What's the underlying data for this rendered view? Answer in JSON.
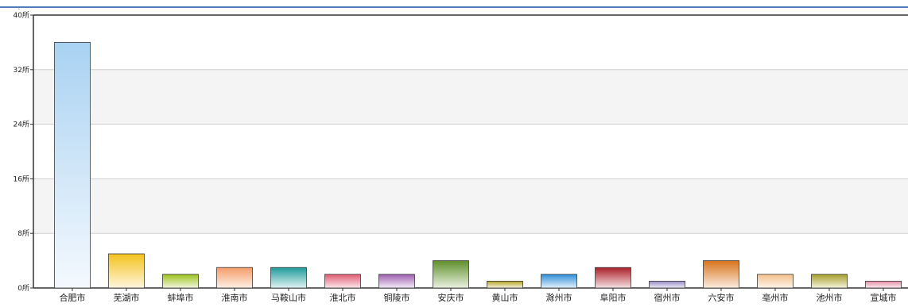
{
  "chart_data": {
    "type": "bar",
    "title": "",
    "xlabel": "",
    "ylabel": "",
    "y_unit": "所",
    "ylim": [
      0,
      40
    ],
    "y_ticks": [
      0,
      8,
      16,
      24,
      32,
      40
    ],
    "y_tick_labels": [
      "0所",
      "8所",
      "16所",
      "24所",
      "32所",
      "40所"
    ],
    "grid": true,
    "legend": "none",
    "categories": [
      "合肥市",
      "芜湖市",
      "蚌埠市",
      "淮南市",
      "马鞍山市",
      "淮北市",
      "铜陵市",
      "安庆市",
      "黄山市",
      "滁州市",
      "阜阳市",
      "宿州市",
      "六安市",
      "亳州市",
      "池州市",
      "宣城市"
    ],
    "values": [
      36,
      5,
      2,
      3,
      3,
      2,
      2,
      4,
      1,
      2,
      3,
      1,
      4,
      2,
      2,
      1
    ],
    "bar_colors": [
      [
        "#a9d2f2",
        "#f4f9fe"
      ],
      [
        "#f3c21b",
        "#fff6de"
      ],
      [
        "#9bc31c",
        "#f1f7df"
      ],
      [
        "#f49c68",
        "#fff0e6"
      ],
      [
        "#1f9a9a",
        "#e0f3f3"
      ],
      [
        "#e05c72",
        "#fbe6ea"
      ],
      [
        "#9d5fb0",
        "#f3eaf7"
      ],
      [
        "#5f8f2b",
        "#eaf2e1"
      ],
      [
        "#b5a428",
        "#f6f3dc"
      ],
      [
        "#2f8fd8",
        "#e3f1fc"
      ],
      [
        "#aa1f28",
        "#f6e1e3"
      ],
      [
        "#9a8cc8",
        "#eeebf7"
      ],
      [
        "#d8731a",
        "#fbede0"
      ],
      [
        "#f2c08a",
        "#fef5eb"
      ],
      [
        "#a59e2a",
        "#f4f3dc"
      ],
      [
        "#e68ca4",
        "#fcedf2"
      ]
    ]
  },
  "colors": {
    "top_border": "#4f7db8",
    "band_light": "#f4f4f4",
    "band_white": "#ffffff",
    "gridline": "#cfcfcf",
    "axis": "#333333",
    "label": "#222222"
  }
}
